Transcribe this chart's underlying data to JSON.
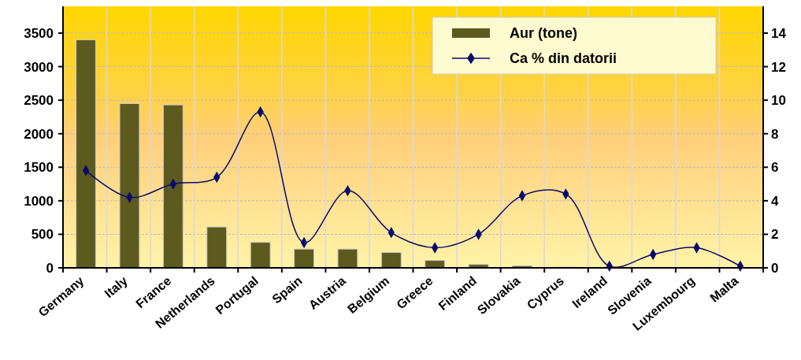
{
  "chart_data": {
    "type": "bar",
    "categories": [
      "Germany",
      "Italy",
      "France",
      "Netherlands",
      "Portugal",
      "Spain",
      "Austria",
      "Belgium",
      "Greece",
      "Finland",
      "Slovakia",
      "Cyprus",
      "Ireland",
      "Slovenia",
      "Luxembourg",
      "Malta"
    ],
    "series": [
      {
        "name": "Aur (tone)",
        "color": "#5c5a1e",
        "values": [
          3400,
          2450,
          2430,
          610,
          380,
          280,
          280,
          230,
          110,
          50,
          30,
          10,
          null,
          0,
          0,
          0
        ]
      },
      {
        "name": "Ca % din datorii",
        "type": "line",
        "axis": "y2",
        "color": "#0a0a6e",
        "values": [
          5.8,
          4.2,
          5.0,
          5.4,
          9.3,
          1.5,
          4.6,
          2.1,
          1.2,
          2.0,
          4.3,
          4.4,
          0.1,
          0.8,
          1.2,
          0.1
        ]
      }
    ],
    "ylim": [
      0,
      3900
    ],
    "yticks": [
      0,
      500,
      1000,
      1500,
      2000,
      2500,
      3000,
      3500
    ],
    "y2lim": [
      0,
      15.6
    ],
    "y2ticks": [
      0,
      2,
      4,
      6,
      8,
      10,
      12,
      14
    ],
    "grid": true,
    "legend": "top right",
    "marker": "diamond"
  }
}
